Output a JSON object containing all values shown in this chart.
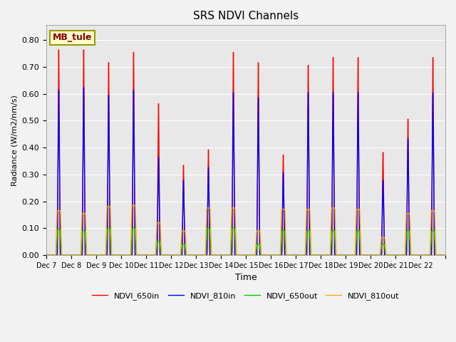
{
  "title": "SRS NDVI Channels",
  "xlabel": "Time",
  "ylabel": "Radiance (W/m2/nm/s)",
  "annotation_text": "MB_tule",
  "legend_labels": [
    "NDVI_650in",
    "NDVI_810in",
    "NDVI_650out",
    "NDVI_810out"
  ],
  "colors": [
    "#ff0000",
    "#0000ff",
    "#00cc00",
    "#ffaa00"
  ],
  "ylim": [
    0.0,
    0.855
  ],
  "xtick_labels": [
    "Dec 7",
    "Dec 8",
    "Dec 9",
    "Dec 10",
    "Dec 11",
    "Dec 12",
    "Dec 13",
    "Dec 14",
    "Dec 15",
    "Dec 16",
    "Dec 17",
    "Dec 18",
    "Dec 19",
    "Dec 20",
    "Dec 21",
    "Dec 22"
  ],
  "day_peaks_650in": [
    0.8,
    0.8,
    0.75,
    0.79,
    0.59,
    0.35,
    0.41,
    0.79,
    0.75,
    0.39,
    0.74,
    0.77,
    0.77,
    0.4,
    0.53,
    0.77
  ],
  "day_peaks_810in": [
    0.64,
    0.65,
    0.62,
    0.64,
    0.38,
    0.29,
    0.34,
    0.63,
    0.61,
    0.32,
    0.63,
    0.63,
    0.63,
    0.29,
    0.45,
    0.63
  ],
  "day_peaks_650out": [
    0.095,
    0.09,
    0.1,
    0.1,
    0.05,
    0.04,
    0.1,
    0.1,
    0.04,
    0.09,
    0.09,
    0.09,
    0.09,
    0.04,
    0.09,
    0.09
  ],
  "day_peaks_810out": [
    0.165,
    0.155,
    0.18,
    0.185,
    0.12,
    0.09,
    0.175,
    0.175,
    0.09,
    0.17,
    0.17,
    0.175,
    0.17,
    0.065,
    0.155,
    0.165
  ],
  "background_color": "#e8e8e8",
  "grid_color": "#ffffff",
  "fig_bg": "#f2f2f2",
  "linewidth": 1.0
}
